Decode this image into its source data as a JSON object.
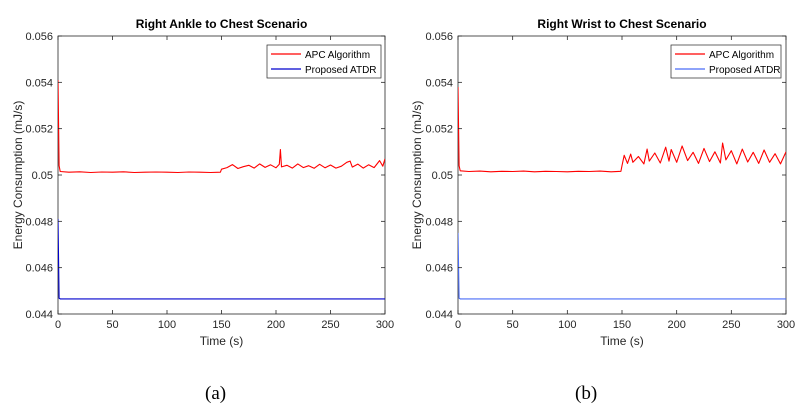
{
  "chart_data": [
    {
      "type": "line",
      "panel_id": "a",
      "title": "Right Ankle to Chest Scenario",
      "xlabel": "Time (s)",
      "ylabel": "Energy Consumption (mJ/s)",
      "xlim": [
        0,
        300
      ],
      "ylim": [
        0.044,
        0.056
      ],
      "xticks": [
        0,
        50,
        100,
        150,
        200,
        250,
        300
      ],
      "xtick_labels": [
        "0",
        "50",
        "100",
        "150",
        "200",
        "250",
        "300"
      ],
      "yticks": [
        0.044,
        0.046,
        0.048,
        0.05,
        0.052,
        0.054,
        0.056
      ],
      "ytick_labels": [
        "0.044",
        "0.046",
        "0.048",
        "0.05",
        "0.052",
        "0.054",
        "0.056"
      ],
      "grid": false,
      "legend_position": "top-right",
      "caption": "(a)",
      "series": [
        {
          "name": "APC Algorithm",
          "color": "#ff0000",
          "x": [
            0,
            1,
            2,
            10,
            20,
            30,
            40,
            50,
            60,
            70,
            80,
            90,
            100,
            110,
            120,
            130,
            140,
            149,
            150,
            155,
            160,
            165,
            170,
            175,
            180,
            185,
            190,
            195,
            200,
            203,
            204,
            205,
            210,
            215,
            220,
            225,
            230,
            235,
            240,
            245,
            250,
            255,
            260,
            265,
            268,
            270,
            275,
            280,
            285,
            290,
            295,
            298,
            300
          ],
          "values": [
            0.0541,
            0.0504,
            0.05015,
            0.05012,
            0.05014,
            0.05011,
            0.05013,
            0.05012,
            0.05014,
            0.05011,
            0.05012,
            0.05013,
            0.05012,
            0.05011,
            0.05013,
            0.05012,
            0.05011,
            0.05012,
            0.05025,
            0.05032,
            0.05045,
            0.05028,
            0.05036,
            0.05042,
            0.0503,
            0.05048,
            0.05033,
            0.05044,
            0.05031,
            0.05046,
            0.0511,
            0.05035,
            0.05042,
            0.0503,
            0.05048,
            0.05032,
            0.0504,
            0.05029,
            0.05046,
            0.05031,
            0.05043,
            0.0503,
            0.05038,
            0.05055,
            0.0506,
            0.05034,
            0.05047,
            0.0503,
            0.05044,
            0.05032,
            0.05062,
            0.05038,
            0.0507
          ]
        },
        {
          "name": "Proposed ATDR",
          "color": "#0000cd",
          "x": [
            0,
            1,
            2,
            5,
            50,
            100,
            150,
            200,
            250,
            300
          ],
          "values": [
            0.0481,
            0.04468,
            0.04465,
            0.04465,
            0.04465,
            0.04465,
            0.04465,
            0.04465,
            0.04465,
            0.04465
          ]
        }
      ]
    },
    {
      "type": "line",
      "panel_id": "b",
      "title": "Right Wrist to Chest Scenario",
      "xlabel": "Time (s)",
      "ylabel": "Energy Consumption (mJ/s)",
      "xlim": [
        0,
        300
      ],
      "ylim": [
        0.044,
        0.056
      ],
      "xticks": [
        0,
        50,
        100,
        150,
        200,
        250,
        300
      ],
      "xtick_labels": [
        "0",
        "50",
        "100",
        "150",
        "200",
        "250",
        "300"
      ],
      "yticks": [
        0.044,
        0.046,
        0.048,
        0.05,
        0.052,
        0.054,
        0.056
      ],
      "ytick_labels": [
        "0.044",
        "0.046",
        "0.048",
        "0.05",
        "0.052",
        "0.054",
        "0.056"
      ],
      "grid": false,
      "legend_position": "top-right",
      "caption": "(b)",
      "series": [
        {
          "name": "APC Algorithm",
          "color": "#ff0000",
          "x": [
            0,
            1,
            2,
            10,
            20,
            30,
            40,
            50,
            60,
            70,
            80,
            90,
            100,
            110,
            120,
            130,
            140,
            149,
            150,
            152,
            155,
            158,
            160,
            165,
            170,
            173,
            175,
            180,
            185,
            190,
            193,
            195,
            200,
            205,
            210,
            215,
            220,
            225,
            230,
            235,
            240,
            242,
            245,
            250,
            255,
            260,
            265,
            270,
            275,
            280,
            285,
            290,
            295,
            300
          ],
          "values": [
            0.0538,
            0.0504,
            0.05018,
            0.05015,
            0.05017,
            0.05014,
            0.05016,
            0.05015,
            0.05017,
            0.05014,
            0.05016,
            0.05015,
            0.05014,
            0.05016,
            0.05015,
            0.05017,
            0.05014,
            0.05016,
            0.0504,
            0.05085,
            0.0505,
            0.0509,
            0.05055,
            0.0508,
            0.05048,
            0.05112,
            0.0506,
            0.05095,
            0.05052,
            0.0512,
            0.0506,
            0.0511,
            0.05055,
            0.05125,
            0.05062,
            0.05098,
            0.0505,
            0.05115,
            0.05058,
            0.051,
            0.05052,
            0.05138,
            0.05065,
            0.05105,
            0.05048,
            0.05112,
            0.05056,
            0.05098,
            0.0505,
            0.05108,
            0.05055,
            0.05092,
            0.05048,
            0.051
          ]
        },
        {
          "name": "Proposed ATDR",
          "color": "#4a6cf7",
          "x": [
            0,
            1,
            2,
            5,
            50,
            100,
            150,
            200,
            250,
            300
          ],
          "values": [
            0.0475,
            0.04468,
            0.04465,
            0.04465,
            0.04465,
            0.04465,
            0.04465,
            0.04465,
            0.04465,
            0.04465
          ]
        }
      ]
    }
  ]
}
